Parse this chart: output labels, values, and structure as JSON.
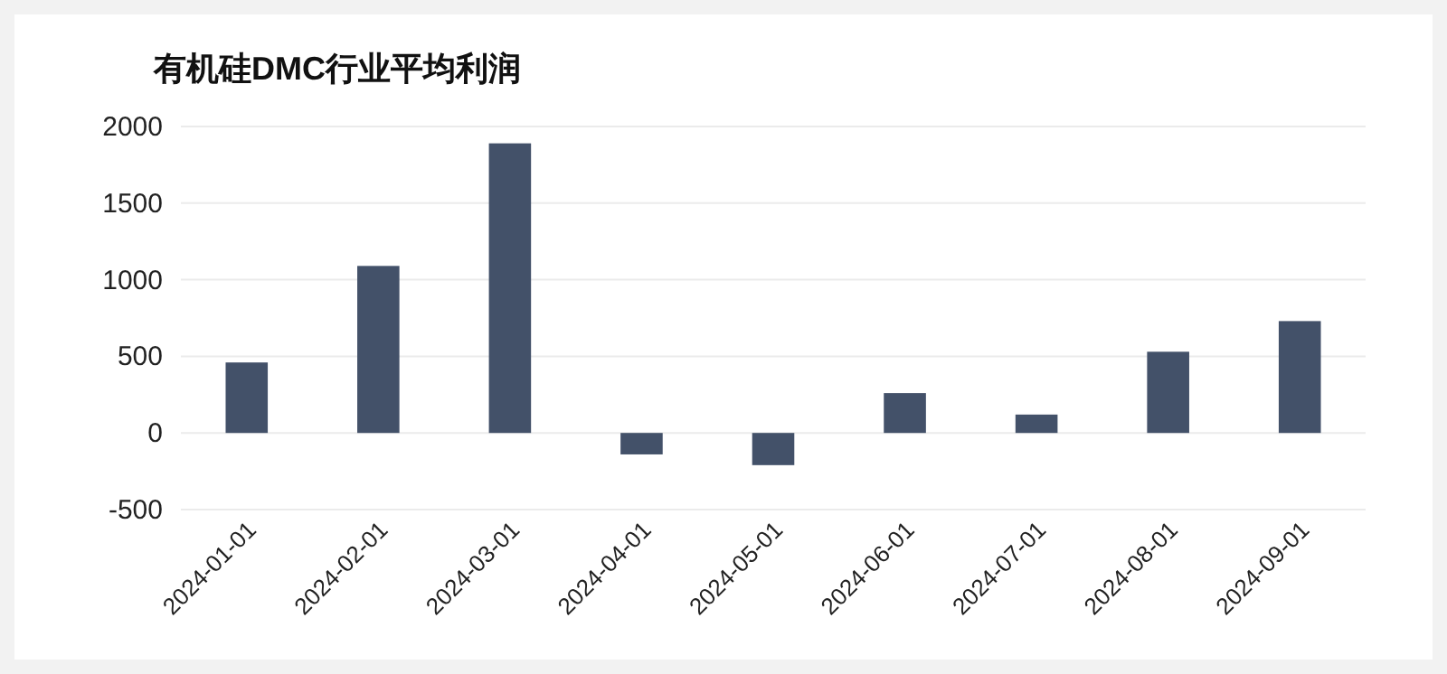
{
  "chart_data": {
    "type": "bar",
    "title": "有机硅DMC行业平均利润",
    "categories": [
      "2024-01-01",
      "2024-02-01",
      "2024-03-01",
      "2024-04-01",
      "2024-05-01",
      "2024-06-01",
      "2024-07-01",
      "2024-08-01",
      "2024-09-01"
    ],
    "values": [
      460,
      1090,
      1890,
      -140,
      -210,
      260,
      120,
      530,
      730
    ],
    "color": "#435169",
    "ylim": [
      -500,
      2000
    ],
    "yticks": [
      -500,
      0,
      500,
      1000,
      1500,
      2000
    ],
    "grid": "y"
  }
}
